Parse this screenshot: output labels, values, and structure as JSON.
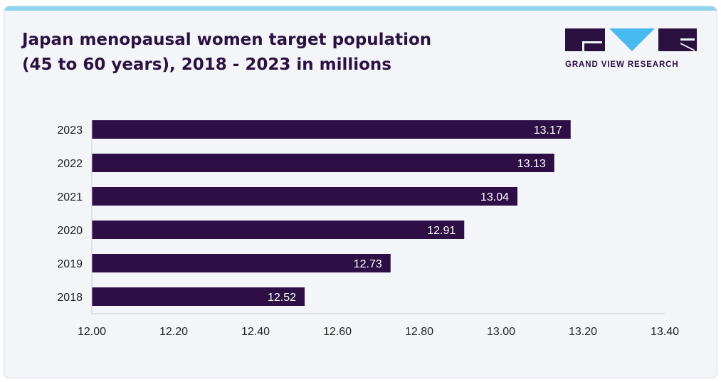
{
  "title_lines": [
    "Japan menopausal women target population",
    "(45 to 60 years), 2018 - 2023 in millions"
  ],
  "logo": {
    "name": "GRAND VIEW RESEARCH",
    "icon": "gvr-logo-icon"
  },
  "colors": {
    "bar": "#2d0f45",
    "title": "#2a1140",
    "logo_accent": "#47b9ef",
    "background": "#f3f5f9"
  },
  "chart_data": {
    "type": "bar",
    "orientation": "horizontal",
    "title": "Japan menopausal women target population (45 to 60 years), 2018 - 2023 in millions",
    "categories": [
      "2023",
      "2022",
      "2021",
      "2020",
      "2019",
      "2018"
    ],
    "values": [
      13.17,
      13.13,
      13.04,
      12.91,
      12.73,
      12.52
    ],
    "value_labels": [
      "13.17",
      "13.13",
      "13.04",
      "12.91",
      "12.73",
      "12.52"
    ],
    "xlim": [
      12.0,
      13.4
    ],
    "x_ticks": [
      "12.00",
      "12.20",
      "12.40",
      "12.60",
      "12.80",
      "13.00",
      "13.20",
      "13.40"
    ],
    "xlabel": "",
    "ylabel": "",
    "grid": false,
    "legend": "none"
  }
}
